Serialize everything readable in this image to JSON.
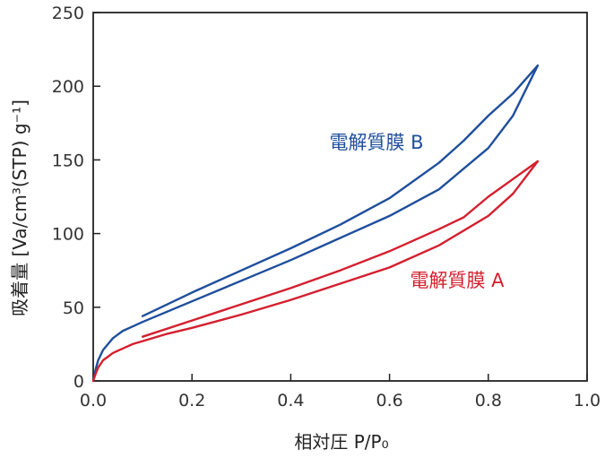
{
  "chart_data": {
    "type": "line",
    "xlabel": "相対圧 P/P₀",
    "ylabel": "吸着量 [Va/cm³(STP) g⁻¹]",
    "xlim": [
      0.0,
      1.0
    ],
    "ylim": [
      0,
      250
    ],
    "x_ticks": [
      "0.0",
      "0.2",
      "0.4",
      "0.6",
      "0.8",
      "1.0"
    ],
    "y_ticks": [
      "0",
      "50",
      "100",
      "150",
      "200",
      "250"
    ],
    "grid": false,
    "series": [
      {
        "name": "電解質膜 B",
        "color": "#1f4e9c",
        "adsorption": {
          "x": [
            0.0,
            0.005,
            0.01,
            0.02,
            0.04,
            0.06,
            0.08,
            0.1,
            0.15,
            0.2,
            0.3,
            0.4,
            0.5,
            0.6,
            0.7,
            0.8,
            0.85,
            0.9
          ],
          "y": [
            0,
            8,
            14,
            21,
            29,
            34,
            37,
            40,
            47,
            54,
            68,
            82,
            97,
            112,
            130,
            158,
            180,
            214
          ]
        },
        "desorption": {
          "x": [
            0.9,
            0.85,
            0.8,
            0.75,
            0.7,
            0.6,
            0.5,
            0.4,
            0.3,
            0.2,
            0.1
          ],
          "y": [
            214,
            195,
            180,
            163,
            148,
            124,
            106,
            90,
            75,
            60,
            44
          ]
        }
      },
      {
        "name": "電解質膜 A",
        "color": "#d41f2e",
        "adsorption": {
          "x": [
            0.0,
            0.005,
            0.01,
            0.02,
            0.04,
            0.06,
            0.08,
            0.1,
            0.15,
            0.2,
            0.3,
            0.4,
            0.5,
            0.6,
            0.7,
            0.8,
            0.85,
            0.9
          ],
          "y": [
            0,
            5,
            9,
            14,
            19,
            22,
            25,
            27,
            32,
            36,
            45,
            55,
            66,
            77,
            92,
            112,
            127,
            149
          ]
        },
        "desorption": {
          "x": [
            0.9,
            0.85,
            0.8,
            0.75,
            0.7,
            0.6,
            0.5,
            0.4,
            0.3,
            0.2,
            0.1
          ],
          "y": [
            149,
            137,
            125,
            111,
            103,
            88,
            75,
            63,
            52,
            41,
            30
          ]
        }
      }
    ]
  }
}
